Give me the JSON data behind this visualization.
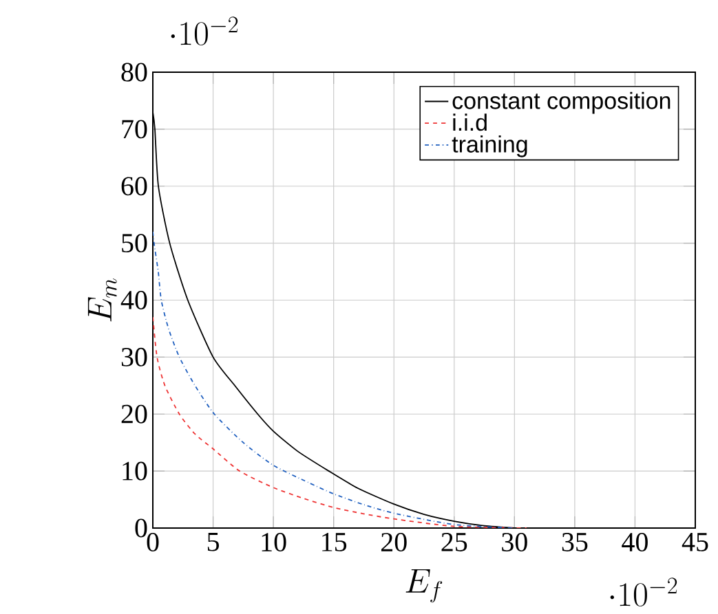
{
  "chart_data": {
    "type": "line",
    "xlabel": "E_f",
    "ylabel": "E_m",
    "annotations": [
      "\\cdot 10^{-2}",
      "\\cdot 10^{-2}"
    ],
    "xlim": [
      0,
      45
    ],
    "ylim": [
      0,
      80
    ],
    "xticks": [
      0,
      5,
      10,
      15,
      20,
      25,
      30,
      35,
      40,
      45
    ],
    "yticks": [
      0,
      10,
      20,
      30,
      40,
      50,
      60,
      70,
      80
    ],
    "grid": true,
    "legend": "top right",
    "marker": "none",
    "series": [
      {
        "name": "constant composition",
        "color": "#000000",
        "line_style": "solid",
        "x": [
          0,
          0.17,
          0.46,
          1.4,
          2.9,
          5,
          6.8,
          8.7,
          10,
          12,
          14.6,
          17,
          20,
          22.5,
          25,
          27.5,
          30
        ],
        "values": [
          73,
          70,
          60,
          50,
          40,
          30,
          25,
          20,
          17,
          13.5,
          10,
          7,
          4.2,
          2.4,
          1.2,
          0.4,
          0
        ]
      },
      {
        "name": "i.i.d",
        "color": "#ee3333",
        "line_style": "dashed",
        "x": [
          0,
          0.35,
          1,
          2.2,
          3.5,
          5,
          7.2,
          10,
          12.5,
          15,
          17.5,
          20,
          25,
          31
        ],
        "values": [
          37,
          30,
          25,
          20,
          16.5,
          13.9,
          10,
          7.1,
          5.2,
          3.6,
          2.5,
          1.6,
          0.3,
          0
        ]
      },
      {
        "name": "training",
        "color": "#1f5fbf",
        "line_style": "dashdot",
        "x": [
          0,
          0.1,
          0.45,
          0.7,
          1.3,
          2.2,
          3.5,
          5.1,
          7.5,
          10,
          12.9,
          15,
          17.5,
          20,
          25,
          30
        ],
        "values": [
          52,
          50,
          45,
          40,
          35,
          30,
          25,
          20,
          15,
          11,
          8,
          6,
          4.1,
          2.6,
          0.6,
          0
        ]
      }
    ]
  }
}
